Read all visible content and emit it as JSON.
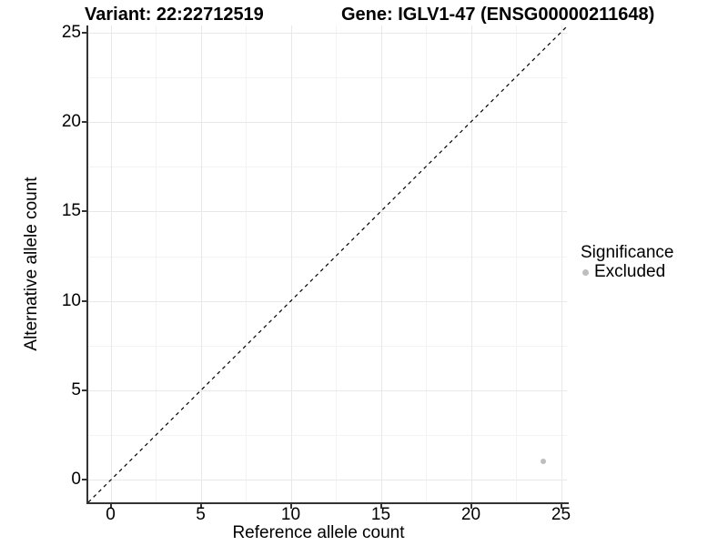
{
  "chart_data": {
    "type": "scatter",
    "title_parts": [
      "Variant: 22:22712519",
      "Gene: IGLV1-47 (ENSG00000211648)"
    ],
    "xlabel": "Reference allele count",
    "ylabel": "Alternative allele count",
    "xlim": [
      -1.25,
      25.4
    ],
    "ylim": [
      -1.5,
      25.4
    ],
    "x_ticks": [
      0,
      5,
      10,
      15,
      20,
      25
    ],
    "y_ticks": [
      0,
      5,
      10,
      15,
      20,
      25
    ],
    "x_minor_ticks": [
      2.5,
      7.5,
      12.5,
      17.5,
      22.5
    ],
    "y_minor_ticks": [
      2.5,
      7.5,
      12.5,
      17.5,
      22.5
    ],
    "grid": "major and minor, on",
    "reference_line": {
      "kind": "identity y=x",
      "style": "dashed",
      "color": "#000000"
    },
    "series": [
      {
        "name": "Excluded",
        "color": "#BEBEBE",
        "points": [
          {
            "x": 24,
            "y": 1
          }
        ]
      }
    ],
    "legend": {
      "title": "Significance",
      "position": "right",
      "entries": [
        {
          "label": "Excluded",
          "marker": "circle",
          "color": "#BEBEBE"
        }
      ]
    },
    "colors": {
      "axis_line": "#333333",
      "grid_major": "#E8E8E8",
      "grid_minor": "#F3F3F3",
      "text": "#000000",
      "background": "#FFFFFF"
    }
  }
}
